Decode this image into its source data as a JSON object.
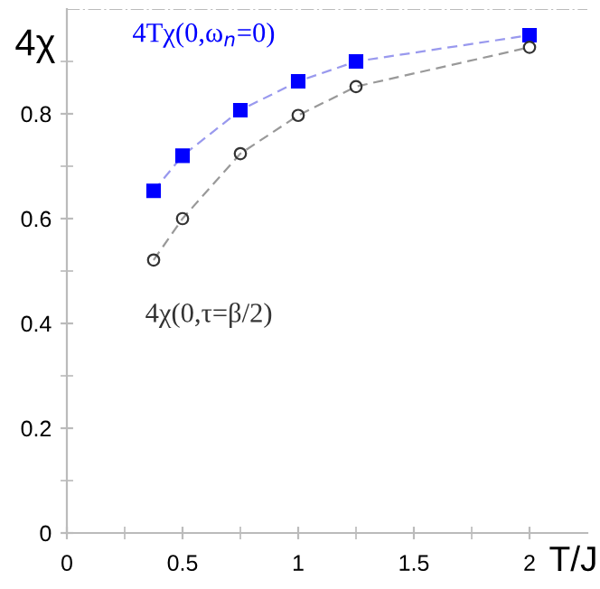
{
  "chart_data": {
    "type": "line",
    "xlabel": "T/J",
    "ylabel": "4χ",
    "x": [
      0.375,
      0.5,
      0.75,
      1,
      1.25,
      2
    ],
    "series": [
      {
        "name": "4Tχ(0,ω$_{n}$=0)",
        "color": "#0000ff",
        "values": [
          0.653,
          0.72,
          0.807,
          0.862,
          0.9,
          0.95
        ],
        "marker": "square"
      },
      {
        "name": "4χ(0,τ=β/2)",
        "color": "#333333",
        "values": [
          0.521,
          0.6,
          0.724,
          0.797,
          0.852,
          0.927
        ],
        "marker": "circle"
      }
    ],
    "line_style": "dashed",
    "xlim": [
      0,
      2.25
    ],
    "ylim": [
      0,
      1.0
    ],
    "xticks": [
      0,
      0.5,
      1,
      1.5,
      2
    ],
    "yticks": [
      0,
      0.2,
      0.4,
      0.6,
      0.8
    ],
    "ref_lines": [
      {
        "axis": "y",
        "value": 1.0,
        "color": "#bbbbbb",
        "line_style": "dashdot"
      }
    ],
    "grid": false,
    "legend": false
  }
}
